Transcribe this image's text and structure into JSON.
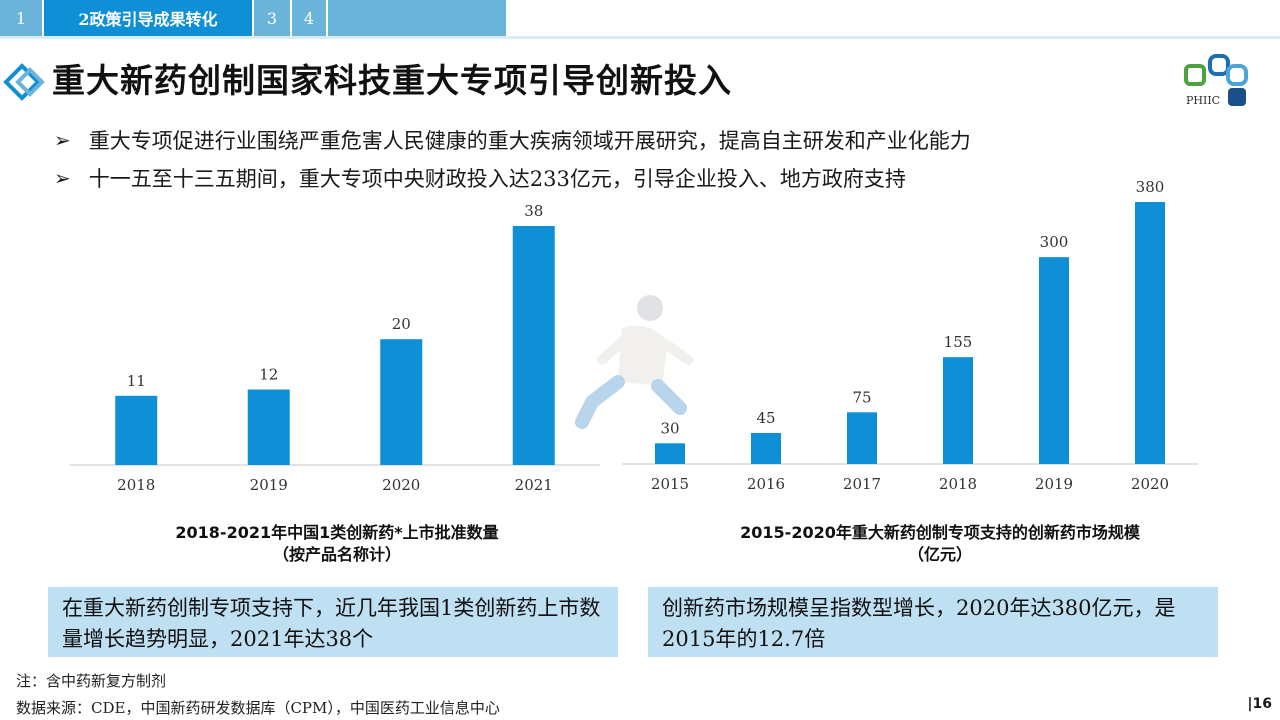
{
  "nav": {
    "tabs": [
      {
        "label": "1",
        "active": false
      },
      {
        "label": "2政策引导成果转化",
        "active": true
      },
      {
        "label": "3",
        "active": false
      },
      {
        "label": "4",
        "active": false
      }
    ]
  },
  "title": "重大新药创制国家科技重大专项引导创新投入",
  "logo_text": "PHIIC",
  "bullets": [
    "重大专项促进行业围绕严重危害人民健康的重大疾病领域开展研究，提高自主研发和产业化能力",
    "十一五至十三五期间，重大专项中央财政投入达233亿元，引导企业投入、地方政府支持"
  ],
  "chart_data": [
    {
      "type": "bar",
      "title": "2018-2021年中国1类创新药*上市批准数量",
      "subtitle": "（按产品名称计）",
      "categories": [
        "2018",
        "2019",
        "2020",
        "2021"
      ],
      "values": [
        11,
        12,
        20,
        38
      ],
      "ylim": [
        0,
        38
      ],
      "grid": false,
      "color": "#0e8fd6"
    },
    {
      "type": "bar",
      "title": "2015-2020年重大新药创制专项支持的创新药市场规模",
      "subtitle": "（亿元）",
      "categories": [
        "2015",
        "2016",
        "2017",
        "2018",
        "2019",
        "2020"
      ],
      "values": [
        30,
        45,
        75,
        155,
        300,
        380
      ],
      "ylim": [
        0,
        380
      ],
      "grid": false,
      "color": "#0e8fd6"
    }
  ],
  "callouts": {
    "left": "在重大新药创制专项支持下，近几年我国1类创新药上市数量增长趋势明显，2021年达38个",
    "right": "创新药市场规模呈指数型增长，2020年达380亿元，是2015年的12.7倍"
  },
  "footnotes": {
    "note": "注：含中药新复方制剂",
    "source": "数据来源：CDE，中国新药研发数据库（CPM），中国医药工业信息中心"
  },
  "page_number": "|16",
  "colors": {
    "accent": "#0e8fd6",
    "nav": "#6ab3d9",
    "callout_bg": "#bfe0f2"
  }
}
